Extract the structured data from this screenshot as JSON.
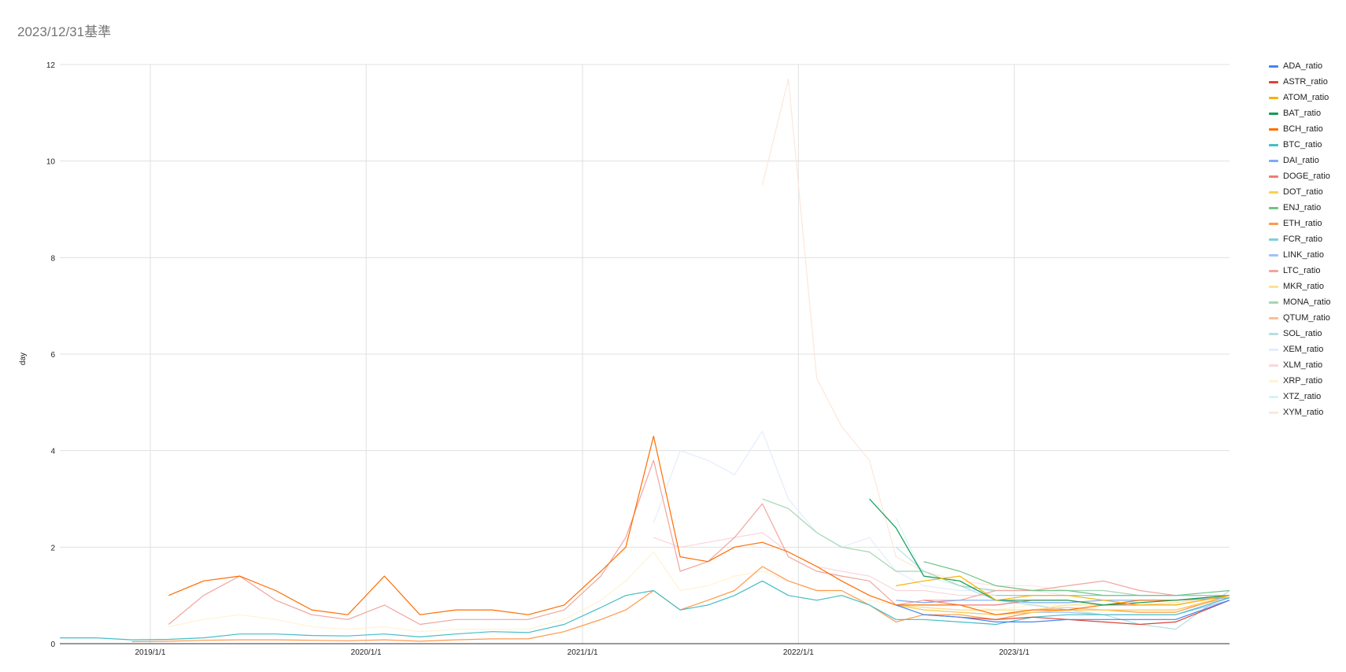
{
  "chart_data": {
    "type": "line",
    "title": "2023/12/31基準",
    "xlabel": "",
    "ylabel": "day",
    "x_ticks": [
      "2019/1/1",
      "2020/1/1",
      "2021/1/1",
      "2022/1/1",
      "2023/1/1"
    ],
    "x_range": [
      "2018-08-01",
      "2023-12-31"
    ],
    "y_ticks": [
      "0",
      "2",
      "4",
      "6",
      "8",
      "10",
      "12"
    ],
    "ylim": [
      0,
      12
    ],
    "grid": true,
    "legend_position": "right",
    "dates": [
      "2018-08-01",
      "2018-10-01",
      "2018-12-01",
      "2019-02-01",
      "2019-04-01",
      "2019-06-01",
      "2019-08-01",
      "2019-10-01",
      "2019-12-01",
      "2020-02-01",
      "2020-04-01",
      "2020-06-01",
      "2020-08-01",
      "2020-10-01",
      "2020-12-01",
      "2021-02-01",
      "2021-03-15",
      "2021-05-01",
      "2021-06-15",
      "2021-08-01",
      "2021-09-15",
      "2021-11-01",
      "2021-12-15",
      "2022-02-01",
      "2022-03-15",
      "2022-05-01",
      "2022-06-15",
      "2022-08-01",
      "2022-10-01",
      "2022-12-01",
      "2023-02-01",
      "2023-04-01",
      "2023-06-01",
      "2023-08-01",
      "2023-10-01",
      "2023-12-31"
    ],
    "series": [
      {
        "name": "ADA_ratio",
        "color": "#4285f4",
        "values": [
          null,
          null,
          null,
          null,
          null,
          null,
          null,
          null,
          null,
          null,
          null,
          null,
          null,
          null,
          null,
          null,
          null,
          null,
          null,
          null,
          null,
          null,
          null,
          null,
          null,
          null,
          0.8,
          0.6,
          0.55,
          0.45,
          0.45,
          0.5,
          0.5,
          0.5,
          0.5,
          0.9
        ]
      },
      {
        "name": "ASTR_ratio",
        "color": "#db4437",
        "values": [
          null,
          null,
          null,
          null,
          null,
          null,
          null,
          null,
          null,
          null,
          null,
          null,
          null,
          null,
          null,
          null,
          null,
          null,
          null,
          null,
          null,
          null,
          null,
          null,
          null,
          null,
          null,
          0.6,
          0.55,
          0.5,
          0.55,
          0.5,
          0.45,
          0.4,
          0.45,
          0.9
        ]
      },
      {
        "name": "ATOM_ratio",
        "color": "#f4b400",
        "values": [
          null,
          null,
          null,
          null,
          null,
          null,
          null,
          null,
          null,
          null,
          null,
          null,
          null,
          null,
          null,
          null,
          null,
          null,
          null,
          null,
          null,
          null,
          null,
          null,
          null,
          null,
          1.2,
          1.3,
          1.4,
          0.9,
          1.0,
          1.0,
          0.9,
          0.8,
          0.8,
          1.0
        ]
      },
      {
        "name": "BAT_ratio",
        "color": "#0f9d58",
        "values": [
          null,
          null,
          null,
          null,
          null,
          null,
          null,
          null,
          null,
          null,
          null,
          null,
          null,
          null,
          null,
          null,
          null,
          null,
          null,
          null,
          null,
          null,
          null,
          null,
          null,
          3.0,
          2.4,
          1.4,
          1.3,
          0.9,
          0.9,
          0.9,
          0.8,
          0.85,
          0.9,
          1.0
        ]
      },
      {
        "name": "BCH_ratio",
        "color": "#ff6d00",
        "values": [
          null,
          null,
          null,
          1.0,
          1.3,
          1.4,
          1.1,
          0.7,
          0.6,
          1.4,
          0.6,
          0.7,
          0.7,
          0.6,
          0.8,
          1.5,
          2.0,
          4.3,
          1.8,
          1.7,
          2.0,
          2.1,
          1.9,
          1.6,
          1.3,
          1.0,
          0.8,
          0.8,
          0.8,
          0.6,
          0.7,
          0.7,
          0.8,
          0.9,
          0.9,
          1.0
        ]
      },
      {
        "name": "BTC_ratio",
        "color": "#46bdc6",
        "values": [
          0.12,
          0.12,
          0.08,
          0.09,
          0.12,
          0.2,
          0.2,
          0.17,
          0.16,
          0.2,
          0.14,
          0.2,
          0.25,
          0.23,
          0.4,
          0.75,
          1.0,
          1.1,
          0.7,
          0.8,
          1.0,
          1.3,
          1.0,
          0.9,
          1.0,
          0.8,
          0.5,
          0.5,
          0.45,
          0.4,
          0.55,
          0.6,
          0.6,
          0.6,
          0.6,
          0.95
        ]
      },
      {
        "name": "DAI_ratio",
        "color": "#7baaf7",
        "values": [
          null,
          null,
          null,
          null,
          null,
          null,
          null,
          null,
          null,
          null,
          null,
          null,
          null,
          null,
          null,
          null,
          null,
          null,
          null,
          null,
          null,
          null,
          null,
          null,
          null,
          null,
          0.9,
          0.85,
          0.9,
          0.9,
          0.85,
          0.85,
          0.9,
          0.9,
          0.9,
          0.95
        ]
      },
      {
        "name": "DOGE_ratio",
        "color": "#f07b72",
        "values": [
          null,
          null,
          null,
          null,
          null,
          null,
          null,
          null,
          null,
          null,
          null,
          null,
          null,
          null,
          null,
          null,
          null,
          null,
          null,
          null,
          null,
          null,
          null,
          null,
          null,
          null,
          null,
          0.9,
          0.8,
          0.8,
          0.9,
          0.9,
          0.8,
          0.8,
          0.8,
          1.0
        ]
      },
      {
        "name": "DOT_ratio",
        "color": "#fcd04f",
        "values": [
          null,
          null,
          null,
          null,
          null,
          null,
          null,
          null,
          null,
          null,
          null,
          null,
          null,
          null,
          null,
          null,
          null,
          null,
          null,
          null,
          null,
          null,
          null,
          null,
          null,
          null,
          0.8,
          0.7,
          0.65,
          0.6,
          0.65,
          0.7,
          0.7,
          0.7,
          0.7,
          1.0
        ]
      },
      {
        "name": "ENJ_ratio",
        "color": "#71c287",
        "values": [
          null,
          null,
          null,
          null,
          null,
          null,
          null,
          null,
          null,
          null,
          null,
          null,
          null,
          null,
          null,
          null,
          null,
          null,
          null,
          null,
          null,
          null,
          null,
          null,
          null,
          null,
          null,
          1.7,
          1.5,
          1.2,
          1.1,
          1.1,
          1.0,
          1.0,
          1.0,
          1.1
        ]
      },
      {
        "name": "ETH_ratio",
        "color": "#ff994d",
        "values": [
          null,
          null,
          0.04,
          0.05,
          0.07,
          0.08,
          0.08,
          0.07,
          0.06,
          0.08,
          0.05,
          0.08,
          0.1,
          0.1,
          0.25,
          0.5,
          0.7,
          1.1,
          0.7,
          0.9,
          1.1,
          1.6,
          1.3,
          1.1,
          1.1,
          0.8,
          0.45,
          0.6,
          0.6,
          0.5,
          0.65,
          0.7,
          0.7,
          0.65,
          0.65,
          1.0
        ]
      },
      {
        "name": "FCR_ratio",
        "color": "#7ed1d7",
        "values": [
          null,
          null,
          null,
          null,
          null,
          null,
          null,
          null,
          null,
          null,
          null,
          null,
          null,
          null,
          null,
          null,
          null,
          null,
          null,
          null,
          null,
          null,
          null,
          null,
          null,
          null,
          null,
          null,
          null,
          1.0,
          1.0,
          1.0,
          1.0,
          1.0,
          1.0,
          1.0
        ]
      },
      {
        "name": "LINK_ratio",
        "color": "#a1c2fa",
        "values": [
          null,
          null,
          null,
          null,
          null,
          null,
          null,
          null,
          null,
          null,
          null,
          null,
          null,
          null,
          null,
          null,
          null,
          null,
          null,
          null,
          null,
          null,
          null,
          null,
          null,
          null,
          0.8,
          0.7,
          0.65,
          0.6,
          0.65,
          0.65,
          0.6,
          0.6,
          0.6,
          0.9
        ]
      },
      {
        "name": "LTC_ratio",
        "color": "#f1a59e",
        "values": [
          null,
          null,
          null,
          0.4,
          1.0,
          1.4,
          0.9,
          0.6,
          0.5,
          0.8,
          0.4,
          0.5,
          0.5,
          0.5,
          0.7,
          1.4,
          2.2,
          3.8,
          1.5,
          1.7,
          2.2,
          2.9,
          1.8,
          1.5,
          1.4,
          1.3,
          0.8,
          0.9,
          0.9,
          1.1,
          1.1,
          1.2,
          1.3,
          1.1,
          1.0,
          1.0
        ]
      },
      {
        "name": "MKR_ratio",
        "color": "#fde18f",
        "values": [
          null,
          null,
          null,
          null,
          null,
          null,
          null,
          null,
          null,
          null,
          null,
          null,
          null,
          null,
          null,
          null,
          null,
          null,
          null,
          null,
          null,
          null,
          null,
          null,
          null,
          null,
          0.8,
          0.75,
          0.7,
          0.7,
          0.7,
          0.8,
          0.8,
          0.8,
          0.85,
          1.0
        ]
      },
      {
        "name": "MONA_ratio",
        "color": "#a3d7b1",
        "values": [
          null,
          null,
          null,
          null,
          null,
          null,
          null,
          null,
          null,
          null,
          null,
          null,
          null,
          null,
          null,
          null,
          null,
          null,
          null,
          null,
          null,
          3.0,
          2.8,
          2.3,
          2.0,
          1.9,
          1.5,
          1.5,
          1.2,
          1.1,
          1.1,
          1.1,
          1.1,
          1.0,
          1.0,
          1.0
        ]
      },
      {
        "name": "QTUM_ratio",
        "color": "#fcbf95",
        "values": [
          null,
          null,
          null,
          null,
          null,
          null,
          null,
          null,
          null,
          null,
          null,
          null,
          null,
          null,
          null,
          null,
          null,
          null,
          null,
          null,
          null,
          null,
          null,
          null,
          null,
          null,
          0.8,
          0.75,
          0.7,
          0.7,
          0.7,
          0.75,
          0.7,
          0.7,
          0.7,
          0.95
        ]
      },
      {
        "name": "SOL_ratio",
        "color": "#b3e1e4",
        "values": [
          null,
          null,
          null,
          null,
          null,
          null,
          null,
          null,
          null,
          null,
          null,
          null,
          null,
          null,
          null,
          null,
          null,
          null,
          null,
          null,
          null,
          null,
          null,
          null,
          null,
          null,
          2.0,
          1.5,
          1.2,
          0.9,
          0.8,
          0.7,
          0.6,
          0.4,
          0.3,
          1.1
        ]
      },
      {
        "name": "XEM_ratio",
        "color": "#e4edfd",
        "values": [
          null,
          null,
          null,
          null,
          null,
          null,
          null,
          null,
          null,
          null,
          null,
          null,
          null,
          null,
          null,
          null,
          null,
          2.5,
          4.0,
          3.8,
          3.5,
          4.4,
          3.0,
          2.3,
          2.0,
          2.2,
          1.5,
          1.2,
          1.1,
          1.1,
          1.1,
          1.0,
          1.0,
          1.0,
          1.0,
          1.0
        ]
      },
      {
        "name": "XLM_ratio",
        "color": "#fad6db",
        "values": [
          null,
          null,
          null,
          null,
          null,
          null,
          null,
          null,
          null,
          null,
          null,
          null,
          null,
          null,
          null,
          null,
          null,
          2.2,
          2.0,
          2.1,
          2.2,
          2.3,
          1.9,
          1.6,
          1.5,
          1.4,
          1.1,
          1.1,
          1.0,
          1.0,
          1.0,
          1.0,
          1.0,
          1.0,
          1.0,
          1.0
        ]
      },
      {
        "name": "XRP_ratio",
        "color": "#fff3d1",
        "values": [
          null,
          null,
          null,
          0.35,
          0.5,
          0.6,
          0.5,
          0.35,
          0.3,
          0.35,
          0.25,
          0.3,
          0.3,
          0.3,
          0.5,
          0.9,
          1.3,
          1.9,
          1.1,
          1.2,
          1.4,
          1.5,
          1.3,
          1.1,
          1.0,
          0.9,
          0.8,
          0.8,
          0.8,
          0.7,
          0.8,
          0.8,
          0.9,
          0.9,
          0.9,
          1.0
        ]
      },
      {
        "name": "XTZ_ratio",
        "color": "#d9f2f3",
        "values": [
          null,
          null,
          null,
          null,
          null,
          null,
          null,
          null,
          null,
          null,
          null,
          null,
          null,
          null,
          null,
          null,
          null,
          null,
          null,
          null,
          null,
          null,
          null,
          null,
          null,
          null,
          2.6,
          1.4,
          1.2,
          1.0,
          1.0,
          1.0,
          1.0,
          1.0,
          1.0,
          1.0
        ]
      },
      {
        "name": "XYM_ratio",
        "color": "#fde7da",
        "values": [
          null,
          null,
          null,
          null,
          null,
          null,
          null,
          null,
          null,
          null,
          null,
          null,
          null,
          null,
          null,
          null,
          null,
          null,
          null,
          null,
          null,
          9.5,
          11.7,
          5.5,
          4.5,
          3.8,
          1.8,
          1.5,
          1.3,
          1.2,
          1.2,
          1.1,
          1.1,
          1.0,
          1.0,
          1.0
        ]
      }
    ]
  }
}
